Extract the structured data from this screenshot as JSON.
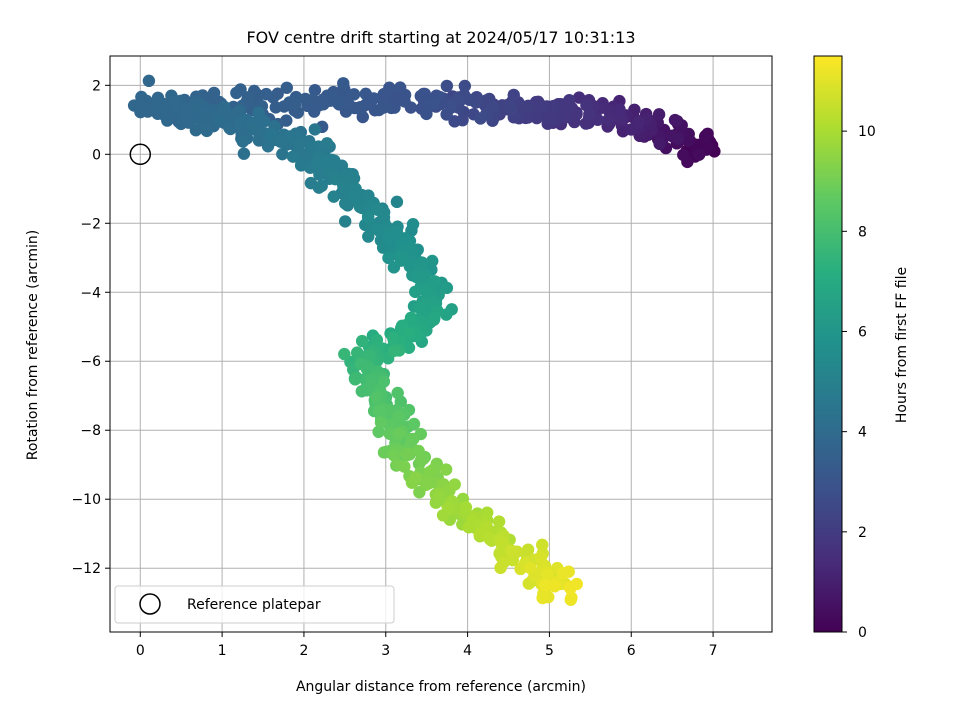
{
  "chart_data": {
    "type": "scatter",
    "title": "FOV centre drift starting at 2024/05/17 10:31:13",
    "xlabel": "Angular distance from reference (arcmin)",
    "ylabel": "Rotation from reference (arcmin)",
    "xlim": [
      -0.37,
      7.72
    ],
    "ylim": [
      -13.85,
      2.85
    ],
    "xticks": [
      0,
      1,
      2,
      3,
      4,
      5,
      6,
      7
    ],
    "yticks": [
      2,
      0,
      -2,
      -4,
      -6,
      -8,
      -10,
      -12
    ],
    "grid": true,
    "legend": {
      "placement": "lower-left",
      "entries": [
        "Reference platepar"
      ]
    },
    "reference_point": {
      "x": 0,
      "y": 0,
      "marker": "open-circle"
    },
    "colorbar": {
      "label": "Hours from first FF file",
      "colormap": "viridis",
      "range": [
        0,
        11.5
      ],
      "ticks": [
        0,
        2,
        4,
        6,
        8,
        10
      ]
    },
    "color_variable": "hours",
    "drift_track": [
      {
        "x": 7.0,
        "y": 0.15,
        "hours": 0.0
      },
      {
        "x": 6.6,
        "y": 0.45,
        "hours": 0.45
      },
      {
        "x": 6.2,
        "y": 0.8,
        "hours": 0.9
      },
      {
        "x": 5.85,
        "y": 1.05,
        "hours": 1.25
      },
      {
        "x": 5.4,
        "y": 1.2,
        "hours": 1.6
      },
      {
        "x": 5.0,
        "y": 1.25,
        "hours": 1.9
      },
      {
        "x": 4.6,
        "y": 1.35,
        "hours": 2.2
      },
      {
        "x": 4.1,
        "y": 1.45,
        "hours": 2.5
      },
      {
        "x": 3.6,
        "y": 1.5,
        "hours": 2.8
      },
      {
        "x": 3.0,
        "y": 1.55,
        "hours": 3.05
      },
      {
        "x": 2.4,
        "y": 1.55,
        "hours": 3.25
      },
      {
        "x": 1.7,
        "y": 1.45,
        "hours": 3.45
      },
      {
        "x": 1.1,
        "y": 1.35,
        "hours": 3.6
      },
      {
        "x": 0.5,
        "y": 1.35,
        "hours": 3.75
      },
      {
        "x": 0.1,
        "y": 1.45,
        "hours": 3.85
      },
      {
        "x": 0.6,
        "y": 1.1,
        "hours": 3.95
      },
      {
        "x": 1.1,
        "y": 0.9,
        "hours": 4.05
      },
      {
        "x": 1.5,
        "y": 0.6,
        "hours": 4.25
      },
      {
        "x": 2.0,
        "y": 0.3,
        "hours": 4.55
      },
      {
        "x": 2.25,
        "y": -0.3,
        "hours": 4.85
      },
      {
        "x": 2.55,
        "y": -1.0,
        "hours": 5.05
      },
      {
        "x": 2.85,
        "y": -1.8,
        "hours": 5.3
      },
      {
        "x": 3.1,
        "y": -2.5,
        "hours": 5.6
      },
      {
        "x": 3.35,
        "y": -3.2,
        "hours": 5.95
      },
      {
        "x": 3.55,
        "y": -3.9,
        "hours": 6.3
      },
      {
        "x": 3.55,
        "y": -4.6,
        "hours": 6.7
      },
      {
        "x": 3.3,
        "y": -5.2,
        "hours": 7.05
      },
      {
        "x": 2.9,
        "y": -5.6,
        "hours": 7.4
      },
      {
        "x": 2.75,
        "y": -6.3,
        "hours": 7.8
      },
      {
        "x": 2.9,
        "y": -7.1,
        "hours": 8.2
      },
      {
        "x": 3.1,
        "y": -7.9,
        "hours": 8.55
      },
      {
        "x": 3.2,
        "y": -8.6,
        "hours": 8.9
      },
      {
        "x": 3.5,
        "y": -9.4,
        "hours": 9.3
      },
      {
        "x": 3.8,
        "y": -10.2,
        "hours": 9.7
      },
      {
        "x": 4.2,
        "y": -10.9,
        "hours": 10.1
      },
      {
        "x": 4.55,
        "y": -11.5,
        "hours": 10.5
      },
      {
        "x": 4.9,
        "y": -12.1,
        "hours": 10.9
      },
      {
        "x": 5.25,
        "y": -12.7,
        "hours": 11.3
      }
    ],
    "drift_points_per_segment": 26,
    "drift_scatter": {
      "x_sd": 0.12,
      "y_sd": 0.22
    }
  }
}
